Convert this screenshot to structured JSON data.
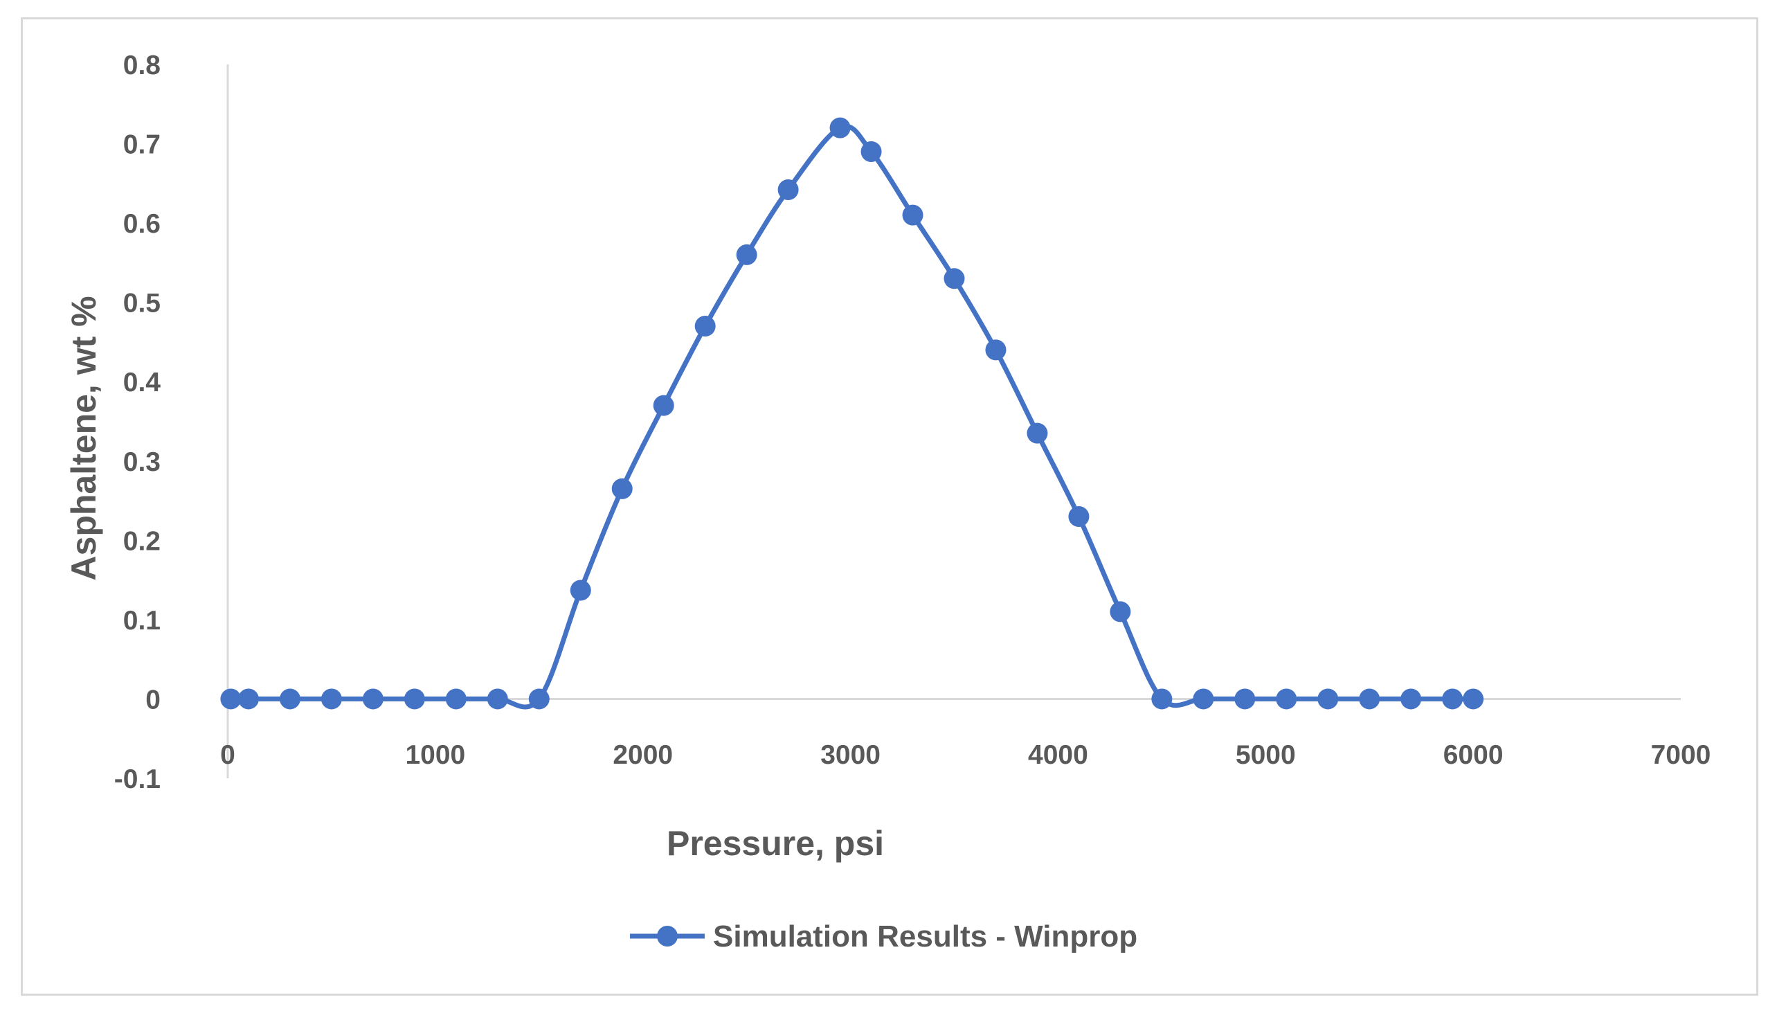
{
  "chart_data": {
    "type": "line",
    "xlabel": "Pressure, psi",
    "ylabel": "Asphaltene, wt %",
    "xlim": [
      0,
      7000
    ],
    "ylim": [
      -0.1,
      0.8
    ],
    "x_ticks": [
      0,
      1000,
      2000,
      3000,
      4000,
      5000,
      6000,
      7000
    ],
    "y_ticks": [
      -0.1,
      0,
      0.1,
      0.2,
      0.3,
      0.4,
      0.5,
      0.6,
      0.7,
      0.8
    ],
    "x_tick_labels": [
      "0",
      "1000",
      "2000",
      "3000",
      "4000",
      "5000",
      "6000",
      "7000"
    ],
    "y_tick_labels": [
      "-0.1",
      "0",
      "0.1",
      "0.2",
      "0.3",
      "0.4",
      "0.5",
      "0.6",
      "0.7",
      "0.8"
    ],
    "grid": false,
    "smooth": true,
    "legend_position": "bottom",
    "series": [
      {
        "name": "Simulation Results - Winprop",
        "color": "#4472c4",
        "marker": "circle",
        "points": [
          [
            14.7,
            0
          ],
          [
            100,
            0
          ],
          [
            300,
            0
          ],
          [
            500,
            0
          ],
          [
            700,
            0
          ],
          [
            900,
            0
          ],
          [
            1100,
            0
          ],
          [
            1300,
            0
          ],
          [
            1500,
            0
          ],
          [
            1700,
            0.137
          ],
          [
            1900,
            0.265
          ],
          [
            2100,
            0.37
          ],
          [
            2300,
            0.47
          ],
          [
            2500,
            0.56
          ],
          [
            2700,
            0.642
          ],
          [
            2950,
            0.72
          ],
          [
            3100,
            0.69
          ],
          [
            3300,
            0.61
          ],
          [
            3500,
            0.53
          ],
          [
            3700,
            0.44
          ],
          [
            3900,
            0.335
          ],
          [
            4100,
            0.23
          ],
          [
            4300,
            0.11
          ],
          [
            4500,
            0
          ],
          [
            4700,
            0
          ],
          [
            4900,
            0
          ],
          [
            5100,
            0
          ],
          [
            5300,
            0
          ],
          [
            5500,
            0
          ],
          [
            5700,
            0
          ],
          [
            5900,
            0
          ],
          [
            6000,
            0
          ]
        ]
      }
    ]
  }
}
